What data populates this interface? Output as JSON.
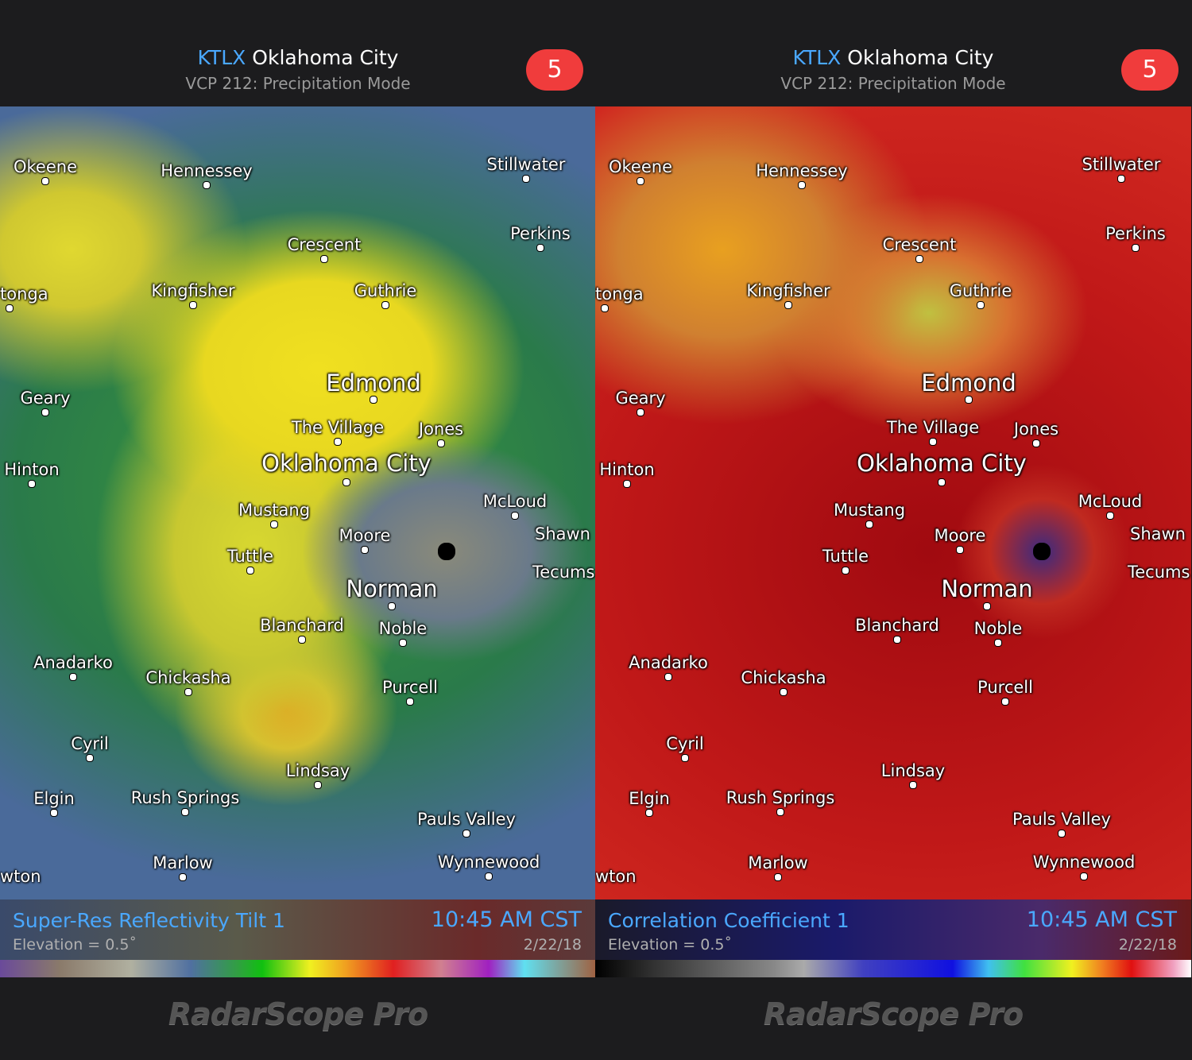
{
  "panels": [
    {
      "header": {
        "station": "KTLX",
        "city": "Oklahoma City",
        "mode": "VCP 212: Precipitation Mode",
        "badge": "5"
      },
      "map_labels": [
        "Okeene",
        "Hennessey",
        "Stillwater",
        "Perkins",
        "Crescent",
        "tonga",
        "Kingfisher",
        "Guthrie",
        "Edmond",
        "Geary",
        "The Village",
        "Jones",
        "Oklahoma City",
        "Hinton",
        "McLoud",
        "Mustang",
        "Shawn",
        "Moore",
        "Tuttle",
        "Tecums",
        "Norman",
        "Blanchard",
        "Noble",
        "Anadarko",
        "Chickasha",
        "Purcell",
        "Cyril",
        "Lindsay",
        "Elgin",
        "Rush Springs",
        "Pauls Valley",
        "Marlow",
        "Wynnewood",
        "wton"
      ],
      "footer": {
        "product": "Super-Res Reflectivity Tilt 1",
        "elevation": "Elevation = 0.5˚",
        "time": "10:45 AM CST",
        "date": "2/22/18"
      },
      "brand": "RadarScope Pro"
    },
    {
      "header": {
        "station": "KTLX",
        "city": "Oklahoma City",
        "mode": "VCP 212: Precipitation Mode",
        "badge": "5"
      },
      "map_labels": [
        "Okeene",
        "Hennessey",
        "Stillwater",
        "Perkins",
        "Crescent",
        "tonga",
        "Kingfisher",
        "Guthrie",
        "Edmond",
        "Geary",
        "The Village",
        "Jones",
        "Oklahoma City",
        "Hinton",
        "McLoud",
        "Mustang",
        "Shawn",
        "Moore",
        "Tuttle",
        "Tecums",
        "Norman",
        "Blanchard",
        "Noble",
        "Anadarko",
        "Chickasha",
        "Purcell",
        "Cyril",
        "Lindsay",
        "Elgin",
        "Rush Springs",
        "Pauls Valley",
        "Marlow",
        "Wynnewood",
        "wton"
      ],
      "footer": {
        "product": "Correlation Coefficient 1",
        "elevation": "Elevation = 0.5˚",
        "time": "10:45 AM CST",
        "date": "2/22/18"
      },
      "brand": "RadarScope Pro"
    }
  ]
}
